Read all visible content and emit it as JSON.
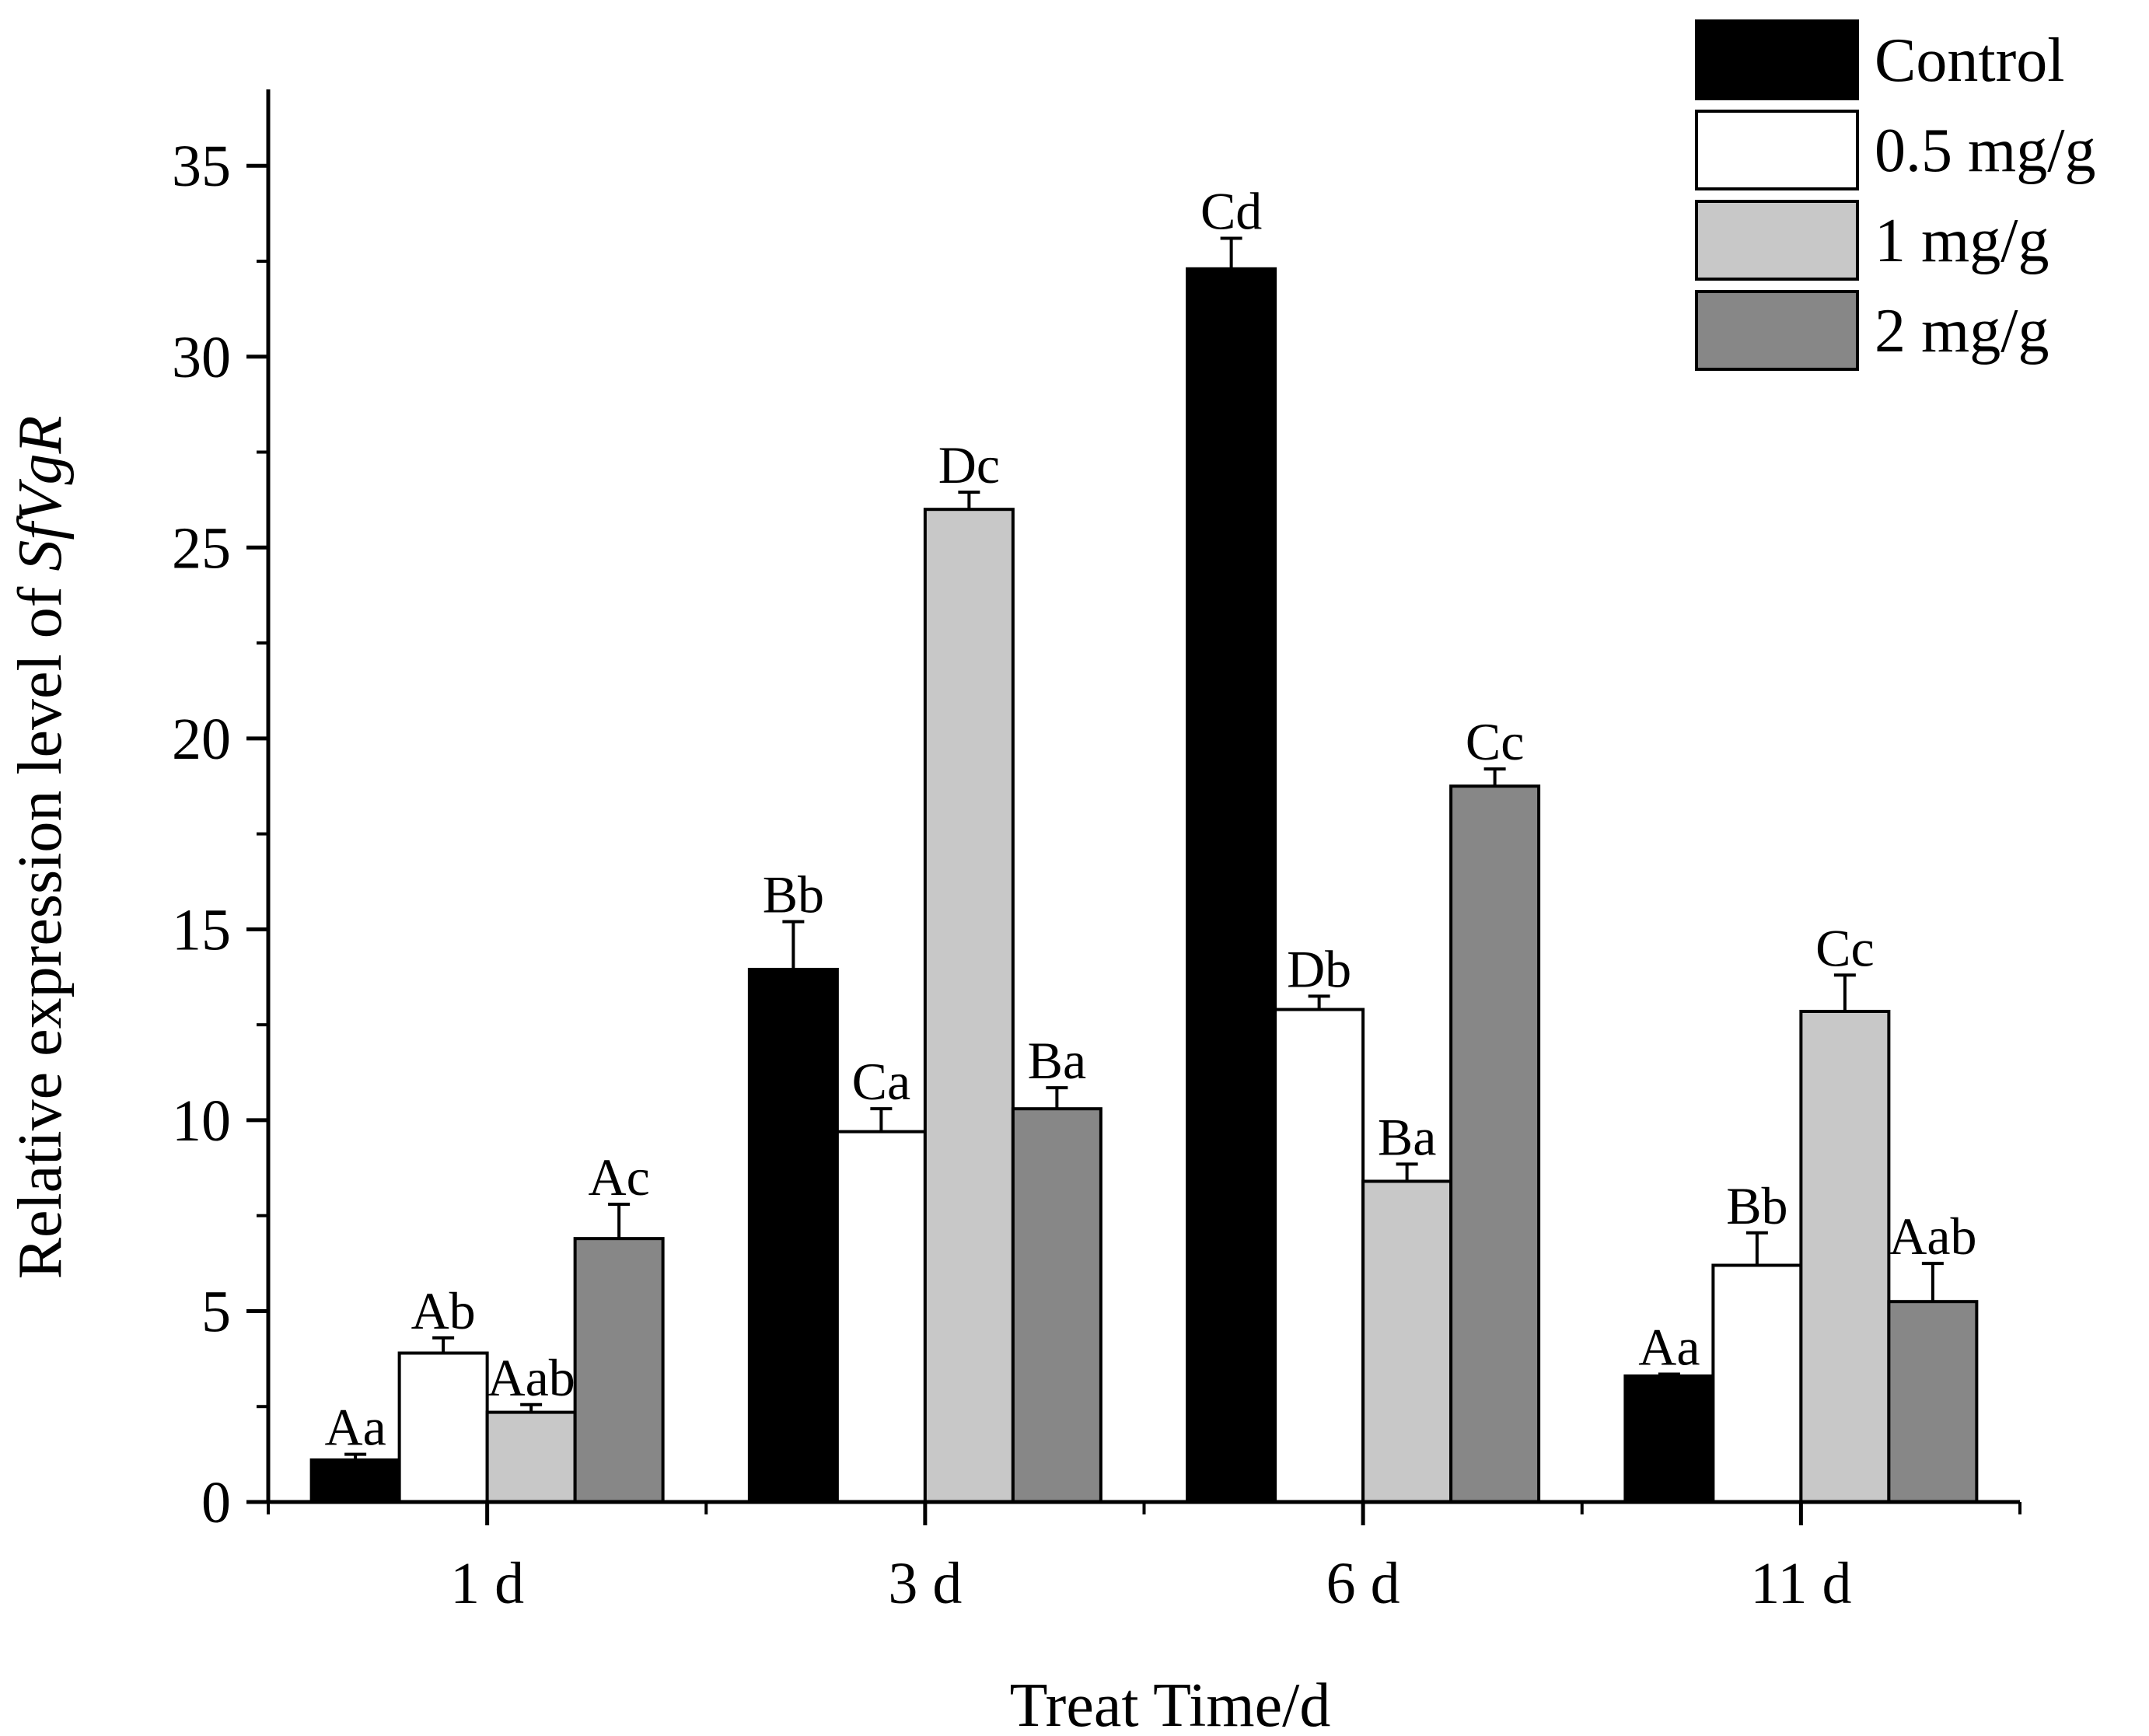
{
  "chart_data": {
    "type": "bar",
    "xlabel": "Treat Time/d",
    "ylabel_prefix": "Relative expression level of ",
    "ylabel_italic": "SfVgR",
    "ylim": [
      0,
      37
    ],
    "yticks": [
      0,
      5,
      10,
      15,
      20,
      25,
      30,
      35
    ],
    "legend_position": "top-right",
    "categories": [
      "1 d",
      "3 d",
      "6 d",
      "11 d"
    ],
    "series": [
      {
        "name": "Control",
        "color": "#000000",
        "values": [
          1.1,
          13.95,
          32.3,
          3.3
        ],
        "errors": [
          0.15,
          1.25,
          0.8,
          0.05
        ],
        "labels": [
          "Aa",
          "Bb",
          "Cd",
          "Aa"
        ]
      },
      {
        "name": "0.5 mg/g",
        "color": "#ffffff",
        "values": [
          3.9,
          9.7,
          12.9,
          6.2
        ],
        "errors": [
          0.4,
          0.6,
          0.35,
          0.85
        ],
        "labels": [
          "Ab",
          "Ca",
          "Db",
          "Bb"
        ]
      },
      {
        "name": "1 mg/g",
        "color": "#c8c8c8",
        "values": [
          2.35,
          26.0,
          8.4,
          12.85
        ],
        "errors": [
          0.2,
          0.45,
          0.45,
          0.95
        ],
        "labels": [
          "Aab",
          "Dc",
          "Ba",
          "Cc"
        ]
      },
      {
        "name": "2 mg/g",
        "color": "#878787",
        "values": [
          6.9,
          10.3,
          18.75,
          5.25
        ],
        "errors": [
          0.9,
          0.55,
          0.45,
          1.0
        ],
        "labels": [
          "Ac",
          "Ba",
          "Cc",
          "Aab"
        ]
      }
    ]
  }
}
